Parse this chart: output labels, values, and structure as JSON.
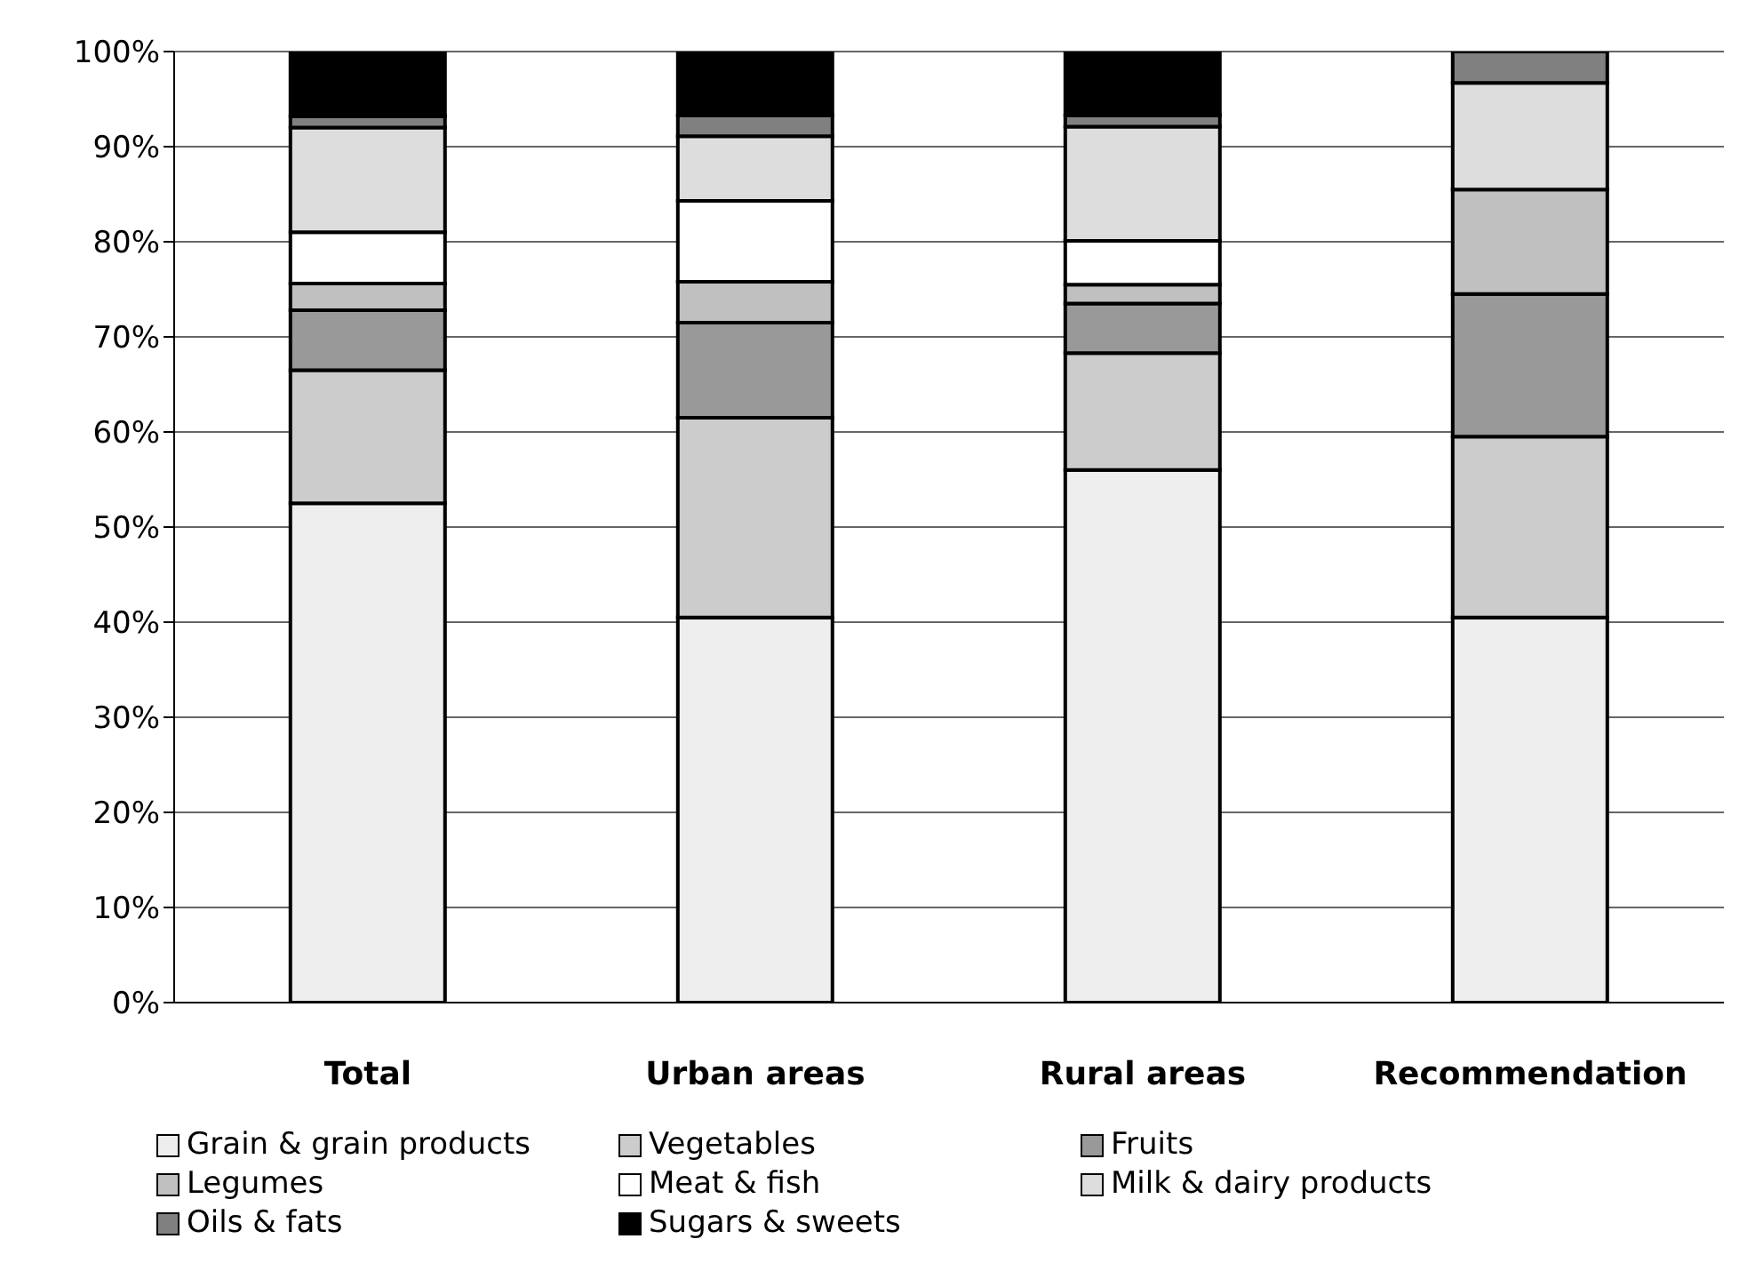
{
  "chart_data": {
    "type": "bar",
    "stacked": true,
    "categories": [
      "Total",
      "Urban areas",
      "Rural areas",
      "Recommendation"
    ],
    "series": [
      {
        "name": "Grain & grain products",
        "color": "#eeeeee",
        "values": [
          52.5,
          40.5,
          56,
          40.5
        ]
      },
      {
        "name": "Vegetables",
        "color": "#cccccc",
        "values": [
          14,
          21,
          12.3,
          19
        ]
      },
      {
        "name": "Fruits",
        "color": "#999999",
        "values": [
          6.3,
          10,
          5.2,
          15
        ]
      },
      {
        "name": "Legumes",
        "color": "#c0c0c0",
        "values": [
          2.8,
          4.3,
          2,
          11
        ]
      },
      {
        "name": "Meat & fish",
        "color": "#ffffff",
        "values": [
          5.4,
          8.5,
          4.6,
          0
        ]
      },
      {
        "name": "Milk & dairy products",
        "color": "#dddddd",
        "values": [
          11,
          6.8,
          12,
          11.2
        ]
      },
      {
        "name": "Oils & fats",
        "color": "#808080",
        "values": [
          1.2,
          2.2,
          1.2,
          3.3
        ]
      },
      {
        "name": "Sugars & sweets",
        "color": "#000000",
        "values": [
          6.8,
          6.7,
          6.7,
          0
        ]
      }
    ],
    "ylim": [
      0,
      100
    ],
    "yticks": [
      {
        "value": 0,
        "label": "0%"
      },
      {
        "value": 10,
        "label": "10%"
      },
      {
        "value": 20,
        "label": "20%"
      },
      {
        "value": 30,
        "label": "30%"
      },
      {
        "value": 40,
        "label": "40%"
      },
      {
        "value": 50,
        "label": "50%"
      },
      {
        "value": 60,
        "label": "60%"
      },
      {
        "value": 70,
        "label": "70%"
      },
      {
        "value": 80,
        "label": "80%"
      },
      {
        "value": 90,
        "label": "90%"
      },
      {
        "value": 100,
        "label": "100%"
      }
    ],
    "grid": "y",
    "legend": "bottom"
  }
}
